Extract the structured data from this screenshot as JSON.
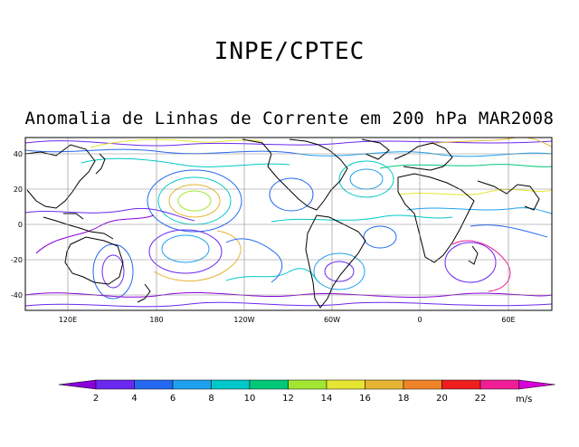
{
  "header": {
    "title": "INPE/CPTEC",
    "subtitle": "Anomalia de Linhas de Corrente em 200 hPa MAR2008"
  },
  "map": {
    "lon_ticks": [
      "120E",
      "180",
      "120W",
      "60W",
      "0",
      "60E"
    ],
    "lat_ticks": [
      "40",
      "20",
      "0",
      "-20",
      "-40"
    ]
  },
  "colorbar": {
    "labels": [
      "2",
      "4",
      "6",
      "8",
      "10",
      "12",
      "14",
      "16",
      "18",
      "20",
      "22"
    ],
    "units": "m/s",
    "colors": [
      "#8800d8",
      "#6a28f0",
      "#2468f0",
      "#1ea0f0",
      "#00c8c8",
      "#00c878",
      "#a0e632",
      "#e6e632",
      "#e6b432",
      "#f08228",
      "#f01e1e",
      "#f01e96",
      "#d800d8"
    ]
  }
}
